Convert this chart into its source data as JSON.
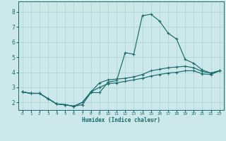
{
  "title": "",
  "xlabel": "Humidex (Indice chaleur)",
  "bg_color": "#cce8ea",
  "grid_color": "#b0d4d6",
  "line_color": "#1a6b6b",
  "spine_color": "#1a6b6b",
  "xlim": [
    -0.5,
    23.5
  ],
  "ylim": [
    1.5,
    8.7
  ],
  "xticks": [
    0,
    1,
    2,
    3,
    4,
    5,
    6,
    7,
    8,
    9,
    10,
    11,
    12,
    13,
    14,
    15,
    16,
    17,
    18,
    19,
    20,
    21,
    22,
    23
  ],
  "yticks": [
    2,
    3,
    4,
    5,
    6,
    7,
    8
  ],
  "line1_x": [
    0,
    1,
    2,
    3,
    4,
    5,
    6,
    7,
    8,
    9,
    10,
    11,
    12,
    13,
    14,
    15,
    16,
    17,
    18,
    19,
    20,
    21,
    22,
    23
  ],
  "line1_y": [
    2.7,
    2.6,
    2.6,
    2.25,
    1.9,
    1.85,
    1.75,
    1.85,
    2.65,
    2.65,
    3.35,
    3.45,
    5.3,
    5.2,
    7.75,
    7.85,
    7.4,
    6.6,
    6.2,
    4.85,
    4.6,
    4.15,
    3.95,
    4.1
  ],
  "line2_x": [
    0,
    1,
    2,
    3,
    4,
    5,
    6,
    7,
    8,
    9,
    10,
    11,
    12,
    13,
    14,
    15,
    16,
    17,
    18,
    19,
    20,
    21,
    22,
    23
  ],
  "line2_y": [
    2.7,
    2.6,
    2.6,
    2.25,
    1.9,
    1.85,
    1.75,
    2.0,
    2.7,
    3.3,
    3.5,
    3.55,
    3.6,
    3.7,
    3.85,
    4.1,
    4.2,
    4.3,
    4.35,
    4.4,
    4.3,
    4.05,
    3.95,
    4.1
  ],
  "line3_x": [
    0,
    1,
    2,
    3,
    4,
    5,
    6,
    7,
    8,
    9,
    10,
    11,
    12,
    13,
    14,
    15,
    16,
    17,
    18,
    19,
    20,
    21,
    22,
    23
  ],
  "line3_y": [
    2.7,
    2.6,
    2.6,
    2.25,
    1.9,
    1.85,
    1.75,
    2.0,
    2.7,
    3.0,
    3.25,
    3.3,
    3.4,
    3.5,
    3.6,
    3.75,
    3.85,
    3.95,
    4.0,
    4.1,
    4.1,
    3.9,
    3.85,
    4.1
  ]
}
